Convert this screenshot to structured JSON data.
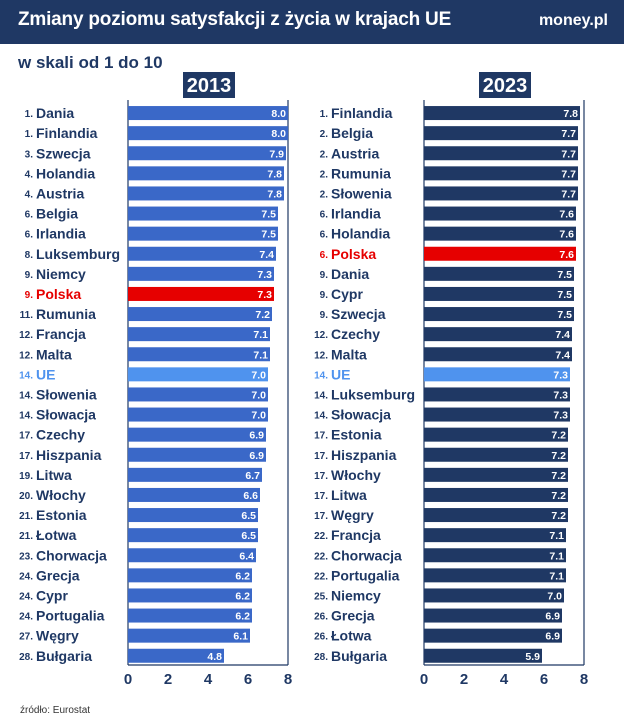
{
  "header": {
    "title": "Zmiany poziomu satysfakcji z życia w krajach UE",
    "brand": "money.pl"
  },
  "subtitle": "w skali od 1 do 10",
  "source": "źródło: Eurostat",
  "colors": {
    "header_bg": "#1f3864",
    "bar_2013": "#3a68c8",
    "bar_2023": "#1f3864",
    "highlight_poland": "#e60000",
    "highlight_eu": "#4f93ee",
    "text_default": "#1f3864"
  },
  "chart_data": [
    {
      "type": "bar",
      "orientation": "horizontal",
      "title": "2013",
      "xlim": [
        0,
        8
      ],
      "xticks": [
        0,
        2,
        4,
        6,
        8
      ],
      "rows": [
        {
          "rank": "1.",
          "label": "Dania",
          "value": 8.0,
          "value_label": "8.0"
        },
        {
          "rank": "1.",
          "label": "Finlandia",
          "value": 8.0,
          "value_label": "8.0"
        },
        {
          "rank": "3.",
          "label": "Szwecja",
          "value": 7.9,
          "value_label": "7.9"
        },
        {
          "rank": "4.",
          "label": "Holandia",
          "value": 7.8,
          "value_label": "7.8"
        },
        {
          "rank": "4.",
          "label": "Austria",
          "value": 7.8,
          "value_label": "7.8"
        },
        {
          "rank": "6.",
          "label": "Belgia",
          "value": 7.5,
          "value_label": "7.5"
        },
        {
          "rank": "6.",
          "label": "Irlandia",
          "value": 7.5,
          "value_label": "7.5"
        },
        {
          "rank": "8.",
          "label": "Luksemburg",
          "value": 7.4,
          "value_label": "7.4"
        },
        {
          "rank": "9.",
          "label": "Niemcy",
          "value": 7.3,
          "value_label": "7.3"
        },
        {
          "rank": "9.",
          "label": "Polska",
          "value": 7.3,
          "value_label": "7.3",
          "highlight": "poland"
        },
        {
          "rank": "11.",
          "label": "Rumunia",
          "value": 7.2,
          "value_label": "7.2"
        },
        {
          "rank": "12.",
          "label": "Francja",
          "value": 7.1,
          "value_label": "7.1"
        },
        {
          "rank": "12.",
          "label": "Malta",
          "value": 7.1,
          "value_label": "7.1"
        },
        {
          "rank": "14.",
          "label": "UE",
          "value": 7.0,
          "value_label": "7.0",
          "highlight": "eu"
        },
        {
          "rank": "14.",
          "label": "Słowenia",
          "value": 7.0,
          "value_label": "7.0"
        },
        {
          "rank": "14.",
          "label": "Słowacja",
          "value": 7.0,
          "value_label": "7.0"
        },
        {
          "rank": "17.",
          "label": "Czechy",
          "value": 6.9,
          "value_label": "6.9"
        },
        {
          "rank": "17.",
          "label": "Hiszpania",
          "value": 6.9,
          "value_label": "6.9"
        },
        {
          "rank": "19.",
          "label": "Litwa",
          "value": 6.7,
          "value_label": "6.7"
        },
        {
          "rank": "20.",
          "label": "Włochy",
          "value": 6.6,
          "value_label": "6.6"
        },
        {
          "rank": "21.",
          "label": "Estonia",
          "value": 6.5,
          "value_label": "6.5"
        },
        {
          "rank": "21.",
          "label": "Łotwa",
          "value": 6.5,
          "value_label": "6.5"
        },
        {
          "rank": "23.",
          "label": "Chorwacja",
          "value": 6.4,
          "value_label": "6.4"
        },
        {
          "rank": "24.",
          "label": "Grecja",
          "value": 6.2,
          "value_label": "6.2"
        },
        {
          "rank": "24.",
          "label": "Cypr",
          "value": 6.2,
          "value_label": "6.2"
        },
        {
          "rank": "24.",
          "label": "Portugalia",
          "value": 6.2,
          "value_label": "6.2"
        },
        {
          "rank": "27.",
          "label": "Węgry",
          "value": 6.1,
          "value_label": "6.1"
        },
        {
          "rank": "28.",
          "label": "Bułgaria",
          "value": 4.8,
          "value_label": "4.8"
        }
      ]
    },
    {
      "type": "bar",
      "orientation": "horizontal",
      "title": "2023",
      "xlim": [
        0,
        8
      ],
      "xticks": [
        0,
        2,
        4,
        6,
        8
      ],
      "rows": [
        {
          "rank": "1.",
          "label": "Finlandia",
          "value": 7.8,
          "value_label": "7.8"
        },
        {
          "rank": "2.",
          "label": "Belgia",
          "value": 7.7,
          "value_label": "7.7"
        },
        {
          "rank": "2.",
          "label": "Austria",
          "value": 7.7,
          "value_label": "7.7"
        },
        {
          "rank": "2.",
          "label": "Rumunia",
          "value": 7.7,
          "value_label": "7.7"
        },
        {
          "rank": "2.",
          "label": "Słowenia",
          "value": 7.7,
          "value_label": "7.7"
        },
        {
          "rank": "6.",
          "label": "Irlandia",
          "value": 7.6,
          "value_label": "7.6"
        },
        {
          "rank": "6.",
          "label": "Holandia",
          "value": 7.6,
          "value_label": "7.6"
        },
        {
          "rank": "6.",
          "label": "Polska",
          "value": 7.6,
          "value_label": "7.6",
          "highlight": "poland"
        },
        {
          "rank": "9.",
          "label": "Dania",
          "value": 7.5,
          "value_label": "7.5"
        },
        {
          "rank": "9.",
          "label": "Cypr",
          "value": 7.5,
          "value_label": "7.5"
        },
        {
          "rank": "9.",
          "label": "Szwecja",
          "value": 7.5,
          "value_label": "7.5"
        },
        {
          "rank": "12.",
          "label": "Czechy",
          "value": 7.4,
          "value_label": "7.4"
        },
        {
          "rank": "12.",
          "label": "Malta",
          "value": 7.4,
          "value_label": "7.4"
        },
        {
          "rank": "14.",
          "label": "UE",
          "value": 7.3,
          "value_label": "7.3",
          "highlight": "eu"
        },
        {
          "rank": "14.",
          "label": "Luksemburg",
          "value": 7.3,
          "value_label": "7.3"
        },
        {
          "rank": "14.",
          "label": "Słowacja",
          "value": 7.3,
          "value_label": "7.3"
        },
        {
          "rank": "17.",
          "label": "Estonia",
          "value": 7.2,
          "value_label": "7.2"
        },
        {
          "rank": "17.",
          "label": "Hiszpania",
          "value": 7.2,
          "value_label": "7.2"
        },
        {
          "rank": "17.",
          "label": "Włochy",
          "value": 7.2,
          "value_label": "7.2"
        },
        {
          "rank": "17.",
          "label": "Litwa",
          "value": 7.2,
          "value_label": "7.2"
        },
        {
          "rank": "17.",
          "label": "Węgry",
          "value": 7.2,
          "value_label": "7.2"
        },
        {
          "rank": "22.",
          "label": "Francja",
          "value": 7.1,
          "value_label": "7.1"
        },
        {
          "rank": "22.",
          "label": "Chorwacja",
          "value": 7.1,
          "value_label": "7.1"
        },
        {
          "rank": "22.",
          "label": "Portugalia",
          "value": 7.1,
          "value_label": "7.1"
        },
        {
          "rank": "25.",
          "label": "Niemcy",
          "value": 7.0,
          "value_label": "7.0"
        },
        {
          "rank": "26.",
          "label": "Grecja",
          "value": 6.9,
          "value_label": "6.9"
        },
        {
          "rank": "26.",
          "label": "Łotwa",
          "value": 6.9,
          "value_label": "6.9"
        },
        {
          "rank": "28.",
          "label": "Bułgaria",
          "value": 5.9,
          "value_label": "5.9"
        }
      ]
    }
  ]
}
